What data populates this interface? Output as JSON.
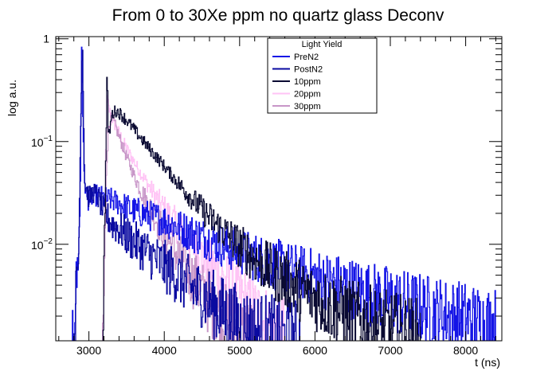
{
  "chart_data": {
    "type": "line",
    "title": "From 0 to 30Xe ppm no quartz glass Deconv",
    "xlabel": "t (ns)",
    "ylabel": "log a.u.",
    "yscale": "log",
    "xlim": [
      2560,
      8480
    ],
    "ylim": [
      0.00115,
      1.05
    ],
    "x_ticks": [
      3000,
      4000,
      5000,
      6000,
      7000,
      8000
    ],
    "x_tick_labels": [
      "3000",
      "4000",
      "5000",
      "6000",
      "7000",
      "8000"
    ],
    "y_ticks": [
      {
        "value": 1,
        "base": "1",
        "exp": ""
      },
      {
        "value": 0.1,
        "base": "10",
        "exp": "−1"
      },
      {
        "value": 0.01,
        "base": "10",
        "exp": "−2"
      }
    ],
    "legend": {
      "title": "Light Yield",
      "position": "top-center"
    },
    "series": [
      {
        "name": "PreN2",
        "color": "#1414e6",
        "x": [
          2780,
          2840,
          2880,
          2900,
          2930,
          2960,
          3000,
          3050,
          3100,
          3150,
          3200,
          3300,
          3400,
          3500,
          3600,
          3700,
          3800,
          3900,
          4000,
          4200,
          4400,
          4600,
          4800,
          5000,
          5200,
          5400,
          5600,
          5800,
          6000,
          6200,
          6400,
          6600,
          6800,
          7000,
          7200,
          7400,
          7600,
          7800,
          8000,
          8200,
          8400
        ],
        "values": [
          0.0014,
          0.005,
          0.02,
          0.85,
          0.05,
          0.03,
          0.027,
          0.03,
          0.03,
          0.029,
          0.028,
          0.027,
          0.025,
          0.023,
          0.021,
          0.02,
          0.019,
          0.018,
          0.017,
          0.0145,
          0.0125,
          0.011,
          0.0095,
          0.0085,
          0.0075,
          0.0066,
          0.0059,
          0.0053,
          0.0048,
          0.0043,
          0.0039,
          0.0035,
          0.0032,
          0.0029,
          0.0026,
          0.0024,
          0.0022,
          0.002,
          0.0019,
          0.0017,
          0.0016
        ]
      },
      {
        "name": "PostN2",
        "color": "#0a0aa0",
        "x": [
          2800,
          2860,
          2890,
          2910,
          2940,
          3000,
          3050,
          3100,
          3150,
          3200,
          3300,
          3400,
          3500,
          3600,
          3700,
          3800,
          3900,
          4000,
          4200,
          4400,
          4600,
          4800,
          5000,
          5200,
          5400,
          5600,
          5800
        ],
        "values": [
          0.0014,
          0.008,
          0.2,
          1.0,
          0.04,
          0.028,
          0.032,
          0.03,
          0.025,
          0.02,
          0.016,
          0.014,
          0.012,
          0.0105,
          0.0092,
          0.008,
          0.007,
          0.0061,
          0.0047,
          0.0036,
          0.0028,
          0.0021,
          0.0017,
          0.0014,
          0.0013,
          0.0012,
          0.00115
        ]
      },
      {
        "name": "10ppm",
        "color": "#0a0a32",
        "x": [
          3180,
          3210,
          3240,
          3250,
          3260,
          3280,
          3300,
          3350,
          3400,
          3450,
          3500,
          3600,
          3700,
          3800,
          3900,
          4000,
          4200,
          4400,
          4600,
          4800,
          5000,
          5200,
          5400,
          5600,
          5800,
          6000,
          6200,
          6400,
          6600,
          6800,
          7000,
          7200,
          7400
        ],
        "values": [
          0.0012,
          0.02,
          0.6,
          0.13,
          0.11,
          0.14,
          0.18,
          0.2,
          0.19,
          0.175,
          0.16,
          0.13,
          0.105,
          0.085,
          0.07,
          0.057,
          0.038,
          0.026,
          0.018,
          0.013,
          0.0095,
          0.0072,
          0.0056,
          0.0045,
          0.0036,
          0.003,
          0.0025,
          0.0021,
          0.0018,
          0.0016,
          0.0014,
          0.0013,
          0.00115
        ]
      },
      {
        "name": "20ppm",
        "color": "#ffc3f5",
        "x": [
          3180,
          3200,
          3220,
          3240,
          3260,
          3280,
          3300,
          3350,
          3400,
          3450,
          3500,
          3600,
          3700,
          3800,
          3900,
          4000,
          4200,
          4400,
          4600,
          4800,
          5000,
          5200,
          5400,
          5600
        ],
        "values": [
          0.0012,
          0.005,
          0.08,
          0.28,
          0.21,
          0.19,
          0.17,
          0.14,
          0.12,
          0.1,
          0.085,
          0.063,
          0.047,
          0.036,
          0.028,
          0.022,
          0.014,
          0.0093,
          0.0063,
          0.0044,
          0.0031,
          0.0022,
          0.0016,
          0.00118
        ]
      },
      {
        "name": "30ppm",
        "color": "#c896c8",
        "x": [
          3180,
          3200,
          3230,
          3260,
          3280,
          3300,
          3350,
          3400,
          3450,
          3500,
          3600,
          3700,
          3800,
          3900,
          4000,
          4200,
          4400,
          4600,
          4800,
          5000,
          5200
        ],
        "values": [
          0.0012,
          0.004,
          0.06,
          0.14,
          0.16,
          0.17,
          0.14,
          0.11,
          0.088,
          0.07,
          0.046,
          0.032,
          0.023,
          0.017,
          0.0125,
          0.0072,
          0.0043,
          0.0027,
          0.0018,
          0.0013,
          0.00115
        ]
      }
    ]
  }
}
